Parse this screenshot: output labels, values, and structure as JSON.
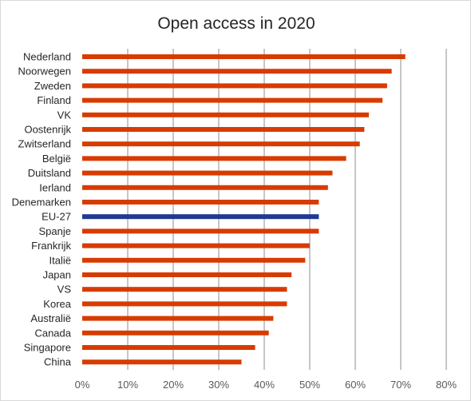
{
  "chart_data": {
    "type": "bar",
    "orientation": "horizontal",
    "title": "Open access in 2020",
    "xlabel": "",
    "ylabel": "",
    "categories": [
      "Nederland",
      "Noorwegen",
      "Zweden",
      "Finland",
      "VK",
      "Oostenrijk",
      "Zwitserland",
      "België",
      "Duitsland",
      "Ierland",
      "Denemarken",
      "EU-27",
      "Spanje",
      "Frankrijk",
      "Italië",
      "Japan",
      "VS",
      "Korea",
      "Australië",
      "Canada",
      "Singapore",
      "China"
    ],
    "values": [
      71,
      68,
      67,
      66,
      63,
      62,
      61,
      58,
      55,
      54,
      52,
      52,
      52,
      50,
      49,
      46,
      45,
      45,
      42,
      41,
      38,
      35
    ],
    "highlight": "EU-27",
    "xlim": [
      0,
      80
    ],
    "xticks": [
      0,
      10,
      20,
      30,
      40,
      50,
      60,
      70,
      80
    ],
    "xtick_labels": [
      "0%",
      "10%",
      "20%",
      "30%",
      "40%",
      "50%",
      "60%",
      "70%",
      "80%"
    ],
    "grid": true,
    "legend": "none",
    "colors": {
      "bar": "#d83b01",
      "highlight": "#1f3a93"
    }
  }
}
